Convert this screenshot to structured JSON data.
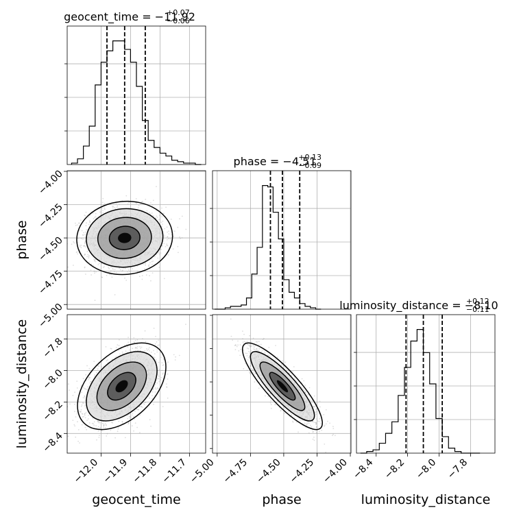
{
  "chart_data": {
    "type": "corner",
    "parameters": [
      "geocent_time",
      "phase",
      "luminosity_distance"
    ],
    "titles": [
      {
        "param": "geocent_time",
        "prefix": "geocent_time = ",
        "value": "−11.92",
        "plus": "+0.07",
        "minus": "−0.06"
      },
      {
        "param": "phase",
        "prefix": "phase = ",
        "value": "−4.51",
        "plus": "+0.13",
        "minus": "−0.09"
      },
      {
        "param": "luminosity_distance",
        "prefix": "luminosity_distance = ",
        "value": "−8.10",
        "plus": "+0.12",
        "minus": "−0.11"
      }
    ],
    "ranges": {
      "geocent_time": [
        -12.115,
        -11.645
      ],
      "phase": [
        -5.035,
        -3.995
      ],
      "luminosity_distance": [
        -8.525,
        -7.645
      ]
    },
    "ticks": {
      "geocent_time": {
        "values": [
          -12.0,
          -11.9,
          -11.8,
          -11.7
        ],
        "labels": [
          "−12.0",
          "−11.9",
          "−11.8",
          "−11.7"
        ]
      },
      "phase": {
        "values": [
          -5.0,
          -4.75,
          -4.5,
          -4.25,
          -4.0
        ],
        "labels": [
          "−5.00",
          "−4.75",
          "−4.50",
          "−4.25",
          "−4.00"
        ]
      },
      "luminosity_distance": {
        "values": [
          -8.4,
          -8.2,
          -8.0,
          -7.8
        ],
        "labels": [
          "−8.4",
          "−8.2",
          "−8.0",
          "−7.8"
        ]
      }
    },
    "quantiles": {
      "geocent_time": [
        -11.98,
        -11.92,
        -11.85
      ],
      "phase": [
        -4.6,
        -4.51,
        -4.38
      ],
      "luminosity_distance": [
        -8.21,
        -8.1,
        -7.98
      ]
    },
    "histograms": {
      "geocent_time": {
        "start": -12.1,
        "step": 0.02,
        "counts": [
          0.01,
          0.04,
          0.13,
          0.27,
          0.56,
          0.72,
          0.8,
          0.87,
          0.87,
          0.81,
          0.72,
          0.55,
          0.31,
          0.17,
          0.12,
          0.08,
          0.06,
          0.03,
          0.02,
          0.01,
          0.01,
          0.0
        ]
      },
      "phase": {
        "start": -5.02,
        "step": 0.04,
        "counts": [
          0.0,
          0.0,
          0.01,
          0.02,
          0.02,
          0.03,
          0.08,
          0.25,
          0.44,
          0.88,
          0.87,
          0.69,
          0.5,
          0.21,
          0.12,
          0.08,
          0.04,
          0.02,
          0.01,
          0.0
        ]
      },
      "luminosity_distance": {
        "start": -8.5,
        "step": 0.04,
        "counts": [
          0.0,
          0.01,
          0.02,
          0.06,
          0.12,
          0.19,
          0.35,
          0.52,
          0.68,
          0.75,
          0.61,
          0.42,
          0.21,
          0.1,
          0.03,
          0.01,
          0.0,
          0.0,
          0.0
        ]
      }
    },
    "pairs": [
      {
        "x": "geocent_time",
        "y": "phase",
        "mean": [
          -11.92,
          -4.5
        ],
        "sd": [
          0.065,
          0.11
        ],
        "corr": 0.05
      },
      {
        "x": "geocent_time",
        "y": "luminosity_distance",
        "mean": [
          -11.93,
          -8.1
        ],
        "sd": [
          0.06,
          0.11
        ],
        "corr": 0.45
      },
      {
        "x": "phase",
        "y": "luminosity_distance",
        "mean": [
          -4.51,
          -8.1
        ],
        "sd": [
          0.12,
          0.11
        ],
        "corr": -0.85
      }
    ],
    "density_color": "#000000",
    "points_color": "#9e9e9e",
    "grid": true
  }
}
